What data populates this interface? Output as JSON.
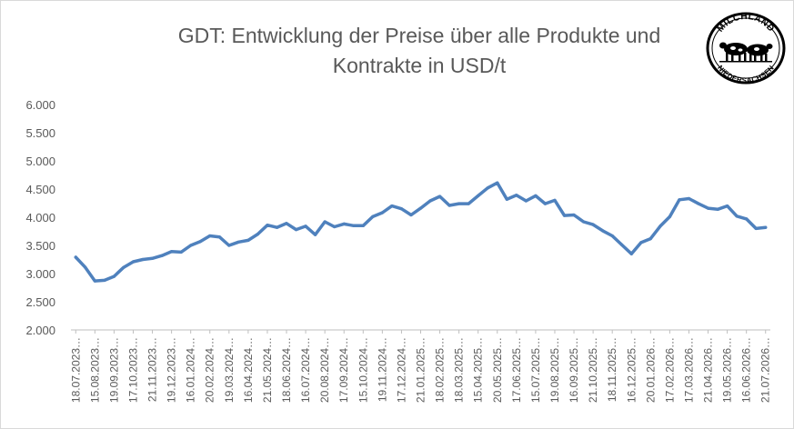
{
  "chart_data": {
    "type": "line",
    "title_line1": "GDT: Entwicklung der Preise über alle Produkte und",
    "title_line2": "Kontrakte in USD/t",
    "xlabel": "",
    "ylabel": "",
    "ylim": [
      2000,
      6000
    ],
    "yticks": [
      2000,
      2500,
      3000,
      3500,
      4000,
      4500,
      5000,
      5500,
      6000
    ],
    "ytick_labels": [
      "2.000",
      "2.500",
      "3.000",
      "3.500",
      "4.000",
      "4.500",
      "5.000",
      "5.500",
      "6.000"
    ],
    "grid": false,
    "legend": "none",
    "xtick_labels": [
      "18.07.2023…",
      "15.08.2023…",
      "19.09.2023…",
      "17.10.2023…",
      "21.11.2023…",
      "19.12.2023…",
      "16.01.2024…",
      "20.02.2024…",
      "19.03.2024…",
      "16.04.2024…",
      "21.05.2024…",
      "18.06.2024…",
      "16.07.2024…",
      "20.08.2024…",
      "17.09.2024…",
      "15.10.2024…",
      "19.11.2024…",
      "17.12.2024…",
      "21.01.2025…",
      "18.02.2025…",
      "18.03.2025…",
      "15.04.2025…",
      "20.05.2025…",
      "17.06.2025…",
      "15.07.2025…",
      "19.08.2025…",
      "16.09.2025…",
      "21.10.2025…",
      "18.11.2025…",
      "16.12.2025…",
      "20.01.2026…",
      "17.02.2026…",
      "17.03.2026…",
      "21.04.2026…",
      "19.05.2026…",
      "16.06.2026…",
      "21.07.2026…"
    ],
    "series": [
      {
        "color": "#4f81bd",
        "values": [
          3290,
          3110,
          2870,
          2880,
          2950,
          3110,
          3210,
          3250,
          3270,
          3320,
          3390,
          3380,
          3500,
          3570,
          3670,
          3650,
          3500,
          3560,
          3590,
          3700,
          3860,
          3820,
          3890,
          3780,
          3840,
          3690,
          3920,
          3830,
          3880,
          3850,
          3850,
          4010,
          4080,
          4200,
          4150,
          4040,
          4160,
          4290,
          4370,
          4210,
          4240,
          4240,
          4380,
          4520,
          4610,
          4320,
          4390,
          4290,
          4380,
          4240,
          4300,
          4030,
          4040,
          3920,
          3870,
          3760,
          3670,
          3510,
          3350,
          3550,
          3620,
          3840,
          4010,
          4310,
          4330,
          4240,
          4160,
          4140,
          4200,
          4020,
          3970,
          3800,
          3820
        ]
      }
    ]
  },
  "logo": {
    "top_text": "MILCHLAND",
    "bottom_text": "NIEDERSACHSEN"
  }
}
